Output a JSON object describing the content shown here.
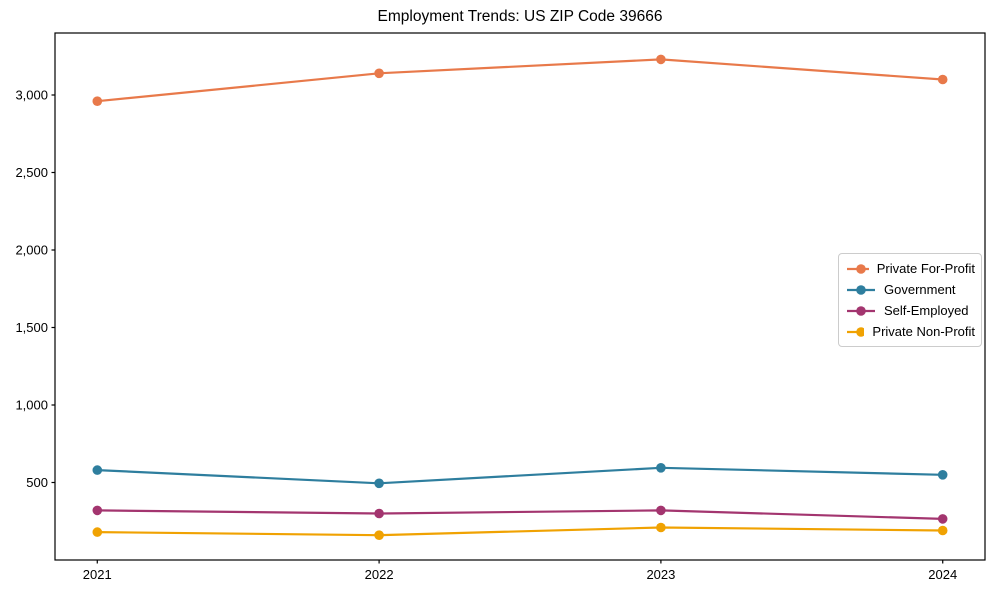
{
  "chart_data": {
    "type": "line",
    "title": "Employment Trends: US ZIP Code 39666",
    "x": [
      2021,
      2022,
      2023,
      2024
    ],
    "x_tick_labels": [
      "2021",
      "2022",
      "2023",
      "2024"
    ],
    "series": [
      {
        "name": "Private For-Profit",
        "color": "#E8794A",
        "values": [
          2960,
          3140,
          3230,
          3100
        ]
      },
      {
        "name": "Government",
        "color": "#2E7E9E",
        "values": [
          580,
          495,
          595,
          550
        ]
      },
      {
        "name": "Self-Employed",
        "color": "#A3356F",
        "values": [
          320,
          300,
          320,
          265
        ]
      },
      {
        "name": "Private Non-Profit",
        "color": "#F0A202",
        "values": [
          180,
          160,
          210,
          190
        ]
      }
    ],
    "xlabel": "",
    "ylabel": "",
    "xlim": [
      2020.85,
      2024.15
    ],
    "ylim": [
      0,
      3400
    ],
    "y_ticks": [
      500,
      1000,
      1500,
      2000,
      2500,
      3000
    ],
    "y_tick_labels": [
      "500",
      "1,000",
      "1,500",
      "2,000",
      "2,500",
      "3,000"
    ],
    "grid": false,
    "legend_position": "center-right",
    "marker": "circle",
    "line_width": 2.2,
    "marker_radius": 4.8,
    "frame_color": "#000000",
    "text_color": "#000000",
    "tick_font_size": 13,
    "legend_border_color": "#cccccc"
  }
}
